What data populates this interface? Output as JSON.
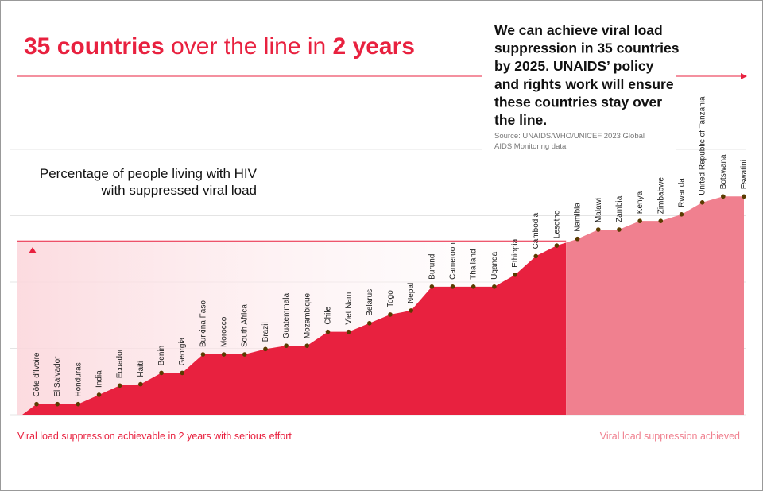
{
  "chart_data": {
    "type": "area",
    "title_parts": [
      "35 countries",
      "over the line in",
      "2 years"
    ],
    "subtitle_lines": [
      "We can achieve viral load",
      "suppression in 35 countries",
      "by 2025. UNAIDS’ policy",
      "and rights work will ensure",
      "these countries stay over",
      "the line."
    ],
    "source_lines": [
      "Source: UNAIDS/WHO/UNICEF 2023 Global",
      "AIDS Monitoring data"
    ],
    "y_label_lines": [
      "Percentage of people living with HIV",
      "with suppressed viral load"
    ],
    "categories": [
      "Côte d’Ivoire",
      "El Salvador",
      "Honduras",
      "India",
      "Ecuador",
      "Haiti",
      "Benin",
      "Georgia",
      "Burkina Faso",
      "Morocco",
      "South Africa",
      "Brazil",
      "Guatemmala",
      "Mozambique",
      "Chile",
      "Viet Nam",
      "Belarus",
      "Togo",
      "Nepal",
      "Burundi",
      "Cameroon",
      "Thailand",
      "Uganda",
      "Ethiopia",
      "Cambodia",
      "Lesotho",
      "Namibia",
      "Malawi",
      "Zambia",
      "Kenya",
      "Zimbabwe",
      "Rwanda",
      "United Republic of Tanzania",
      "Botswana",
      "Eswatini"
    ],
    "series": [
      {
        "name": "Viral load suppression achievable in 2 years with serious effort",
        "color": "#e8213f",
        "values": [
          61.6,
          61.6,
          61.6,
          63.0,
          64.4,
          64.6,
          66.3,
          66.3,
          69.1,
          69.1,
          69.1,
          69.9,
          70.4,
          70.4,
          72.5,
          72.5,
          73.8,
          75.1,
          75.7,
          79.3,
          79.3,
          79.3,
          79.3,
          81.1,
          83.9,
          85.5,
          null,
          null,
          null,
          null,
          null,
          null,
          null,
          null,
          null
        ]
      },
      {
        "name": "Viral load suppression achieved",
        "color": "#f0808f",
        "values": [
          null,
          null,
          null,
          null,
          null,
          null,
          null,
          null,
          null,
          null,
          null,
          null,
          null,
          null,
          null,
          null,
          null,
          null,
          null,
          null,
          null,
          null,
          null,
          null,
          null,
          null,
          86.5,
          87.9,
          87.9,
          89.2,
          89.2,
          90.2,
          92.0,
          92.9,
          92.9
        ]
      }
    ],
    "threshold": 86.2,
    "ylim": [
      60,
      100
    ],
    "grid_lines": [
      60,
      70,
      80,
      90,
      100
    ],
    "grid": true,
    "point_color": "#5a3b00"
  }
}
